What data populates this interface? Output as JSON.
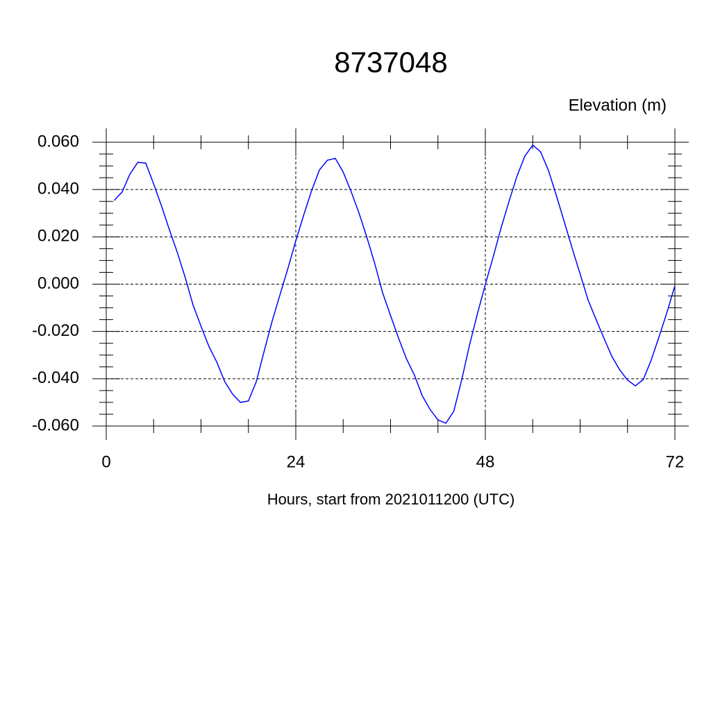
{
  "chart_data": {
    "type": "line",
    "title": "8737048",
    "subtitle": "Elevation (m)",
    "x_label": "Hours, start from 2021011200 (UTC)",
    "x": [
      1,
      2,
      3,
      4,
      5,
      6,
      7,
      8,
      9,
      10,
      11,
      12,
      13,
      14,
      15,
      16,
      17,
      18,
      19,
      20,
      21,
      22,
      23,
      24,
      25,
      26,
      27,
      28,
      29,
      30,
      31,
      32,
      33,
      34,
      35,
      36,
      37,
      38,
      39,
      40,
      41,
      42,
      43,
      44,
      45,
      46,
      47,
      48,
      49,
      50,
      51,
      52,
      53,
      54,
      55,
      56,
      57,
      58,
      59,
      60,
      61,
      62,
      63,
      64,
      65,
      66,
      67,
      68,
      69,
      70,
      71,
      72
    ],
    "series": [
      {
        "color": "#0000ff",
        "values": [
          0.0354,
          0.0389,
          0.0465,
          0.0515,
          0.0512,
          0.0424,
          0.033,
          0.023,
          0.0134,
          0.0028,
          -0.0089,
          -0.0178,
          -0.0263,
          -0.033,
          -0.0412,
          -0.0465,
          -0.05,
          -0.0494,
          -0.0412,
          -0.0283,
          -0.0157,
          -0.0045,
          0.0066,
          0.0183,
          0.0292,
          0.0395,
          0.0483,
          0.0524,
          0.0532,
          0.0474,
          0.0392,
          0.0301,
          0.0198,
          0.0087,
          -0.0037,
          -0.0133,
          -0.0227,
          -0.0315,
          -0.0383,
          -0.0471,
          -0.053,
          -0.0574,
          -0.0588,
          -0.0538,
          -0.0406,
          -0.0257,
          -0.0125,
          -0.0001,
          0.0116,
          0.0239,
          0.035,
          0.0456,
          0.0541,
          0.0588,
          0.0559,
          0.048,
          0.0374,
          0.0263,
          0.0151,
          0.0043,
          -0.0066,
          -0.0148,
          -0.0227,
          -0.0304,
          -0.0362,
          -0.0406,
          -0.043,
          -0.0403,
          -0.0321,
          -0.0222,
          -0.0119,
          -0.0007
        ]
      }
    ],
    "xlim": [
      0,
      72
    ],
    "xticks": [
      0,
      24,
      48,
      72
    ],
    "ylim": [
      -0.06,
      0.06
    ],
    "yticks": [
      {
        "value": -0.06,
        "label": "-0.060"
      },
      {
        "value": -0.04,
        "label": "-0.040"
      },
      {
        "value": -0.02,
        "label": "-0.020"
      },
      {
        "value": 0,
        "label": "0.000"
      },
      {
        "value": 0.02,
        "label": "0.020"
      },
      {
        "value": 0.04,
        "label": "0.040"
      },
      {
        "value": 0.06,
        "label": "0.060"
      }
    ],
    "grid": true
  }
}
